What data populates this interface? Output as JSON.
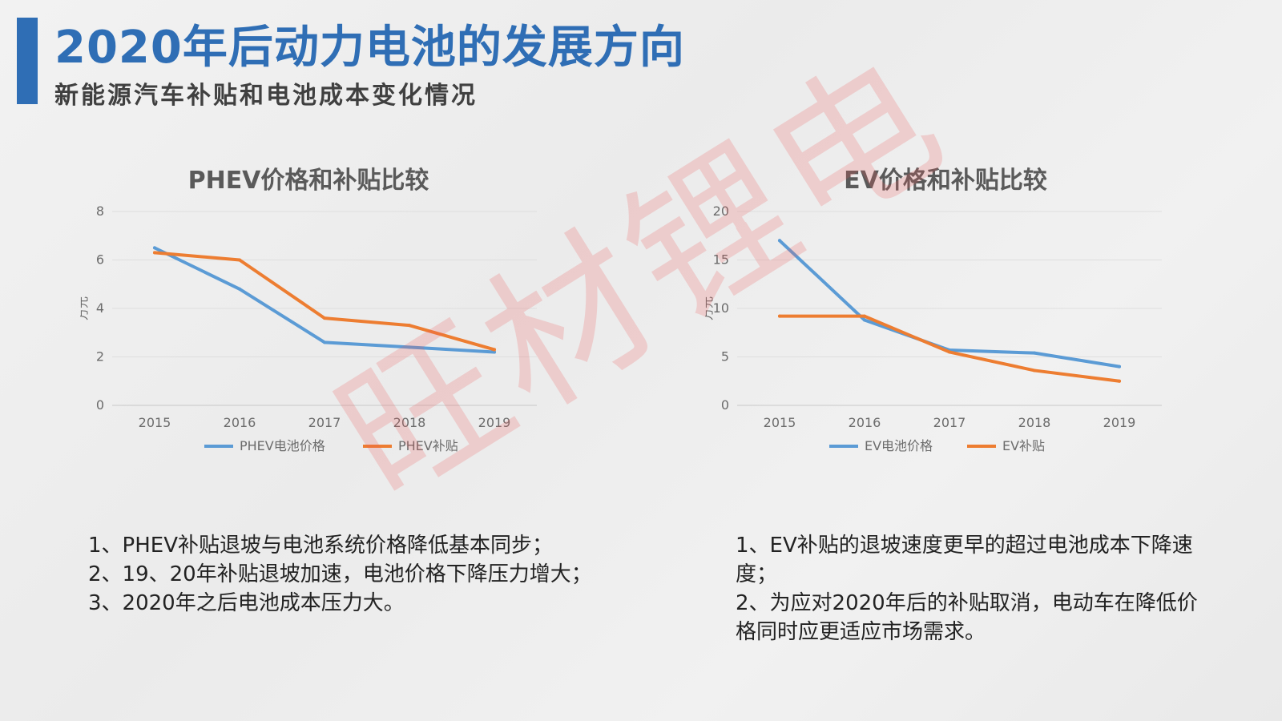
{
  "header": {
    "title": "2020年后动力电池的发展方向",
    "subtitle": "新能源汽车补贴和电池成本变化情况"
  },
  "watermark": "旺材锂电",
  "colors": {
    "accent": "#2f6eb5",
    "series_blue": "#5b9bd5",
    "series_orange": "#ed7d31"
  },
  "chart_data": [
    {
      "type": "line",
      "title": "PHEV价格和补贴比较",
      "ylabel": "万元",
      "x": [
        "2015",
        "2016",
        "2017",
        "2018",
        "2019"
      ],
      "ylim": [
        0,
        8
      ],
      "yticks": [
        "0",
        "2",
        "4",
        "6",
        "8"
      ],
      "grid": true,
      "legend_position": "bottom",
      "series": [
        {
          "name": "PHEV电池价格",
          "color": "#5b9bd5",
          "values": [
            6.5,
            4.8,
            2.6,
            2.4,
            2.2
          ]
        },
        {
          "name": "PHEV补贴",
          "color": "#ed7d31",
          "values": [
            6.3,
            6.0,
            3.6,
            3.3,
            2.3
          ]
        }
      ]
    },
    {
      "type": "line",
      "title": "EV价格和补贴比较",
      "ylabel": "万元",
      "x": [
        "2015",
        "2016",
        "2017",
        "2018",
        "2019"
      ],
      "ylim": [
        0,
        20
      ],
      "yticks": [
        "0",
        "5",
        "10",
        "15",
        "20"
      ],
      "grid": true,
      "legend_position": "bottom",
      "series": [
        {
          "name": "EV电池价格",
          "color": "#5b9bd5",
          "values": [
            17.0,
            8.8,
            5.7,
            5.4,
            4.0
          ]
        },
        {
          "name": "EV补贴",
          "color": "#ed7d31",
          "values": [
            9.2,
            9.2,
            5.5,
            3.6,
            2.5
          ]
        }
      ]
    }
  ],
  "notes_left": [
    "1、PHEV补贴退坡与电池系统价格降低基本同步；",
    "2、19、20年补贴退坡加速，电池价格下降压力增大；",
    "3、2020年之后电池成本压力大。"
  ],
  "notes_right": [
    "1、EV补贴的退坡速度更早的超过电池成本下降速度；",
    "2、为应对2020年后的补贴取消，电动车在降低价格同时应更适应市场需求。"
  ]
}
